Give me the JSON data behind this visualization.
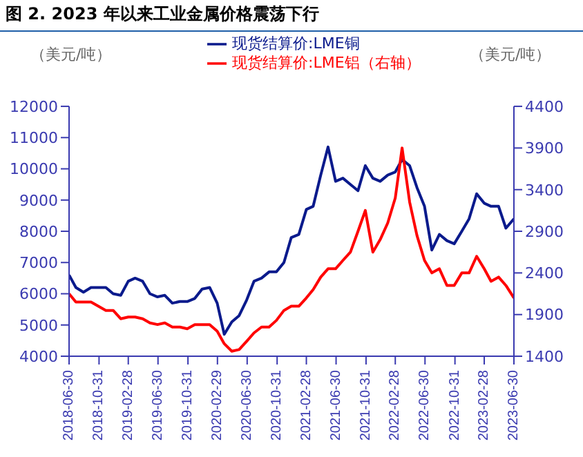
{
  "chart_data": {
    "type": "line",
    "title": "图 2. 2023 年以来工业金属价格震荡下行",
    "ylabel": "（美元/吨）",
    "y2label": "（美元/吨）",
    "x": [
      "2018-06-30",
      "2018-07-28",
      "2018-08-28",
      "2018-09-28",
      "2018-10-28",
      "2018-11-28",
      "2018-12-28",
      "2019-01-28",
      "2019-02-28",
      "2019-03-28",
      "2019-04-28",
      "2019-05-28",
      "2019-06-28",
      "2019-07-28",
      "2019-08-28",
      "2019-09-28",
      "2019-10-28",
      "2019-11-28",
      "2019-12-28",
      "2020-01-28",
      "2020-02-28",
      "2020-03-28",
      "2020-04-28",
      "2020-05-28",
      "2020-06-28",
      "2020-07-28",
      "2020-08-28",
      "2020-09-28",
      "2020-10-28",
      "2020-11-28",
      "2020-12-28",
      "2021-01-28",
      "2021-02-28",
      "2021-03-28",
      "2021-04-28",
      "2021-05-28",
      "2021-06-28",
      "2021-07-28",
      "2021-08-28",
      "2021-09-28",
      "2021-10-28",
      "2021-11-28",
      "2021-12-28",
      "2022-01-28",
      "2022-02-28",
      "2022-03-28",
      "2022-04-28",
      "2022-05-28",
      "2022-06-28",
      "2022-07-28",
      "2022-08-28",
      "2022-09-28",
      "2022-10-28",
      "2022-11-28",
      "2022-12-28",
      "2023-01-28",
      "2023-02-28",
      "2023-03-28",
      "2023-04-28",
      "2023-05-28",
      "2023-06-30"
    ],
    "series": [
      {
        "name": "现货结算价:LME铜",
        "color": "#0a1a8c",
        "values": [
          6600,
          6200,
          6050,
          6200,
          6200,
          6200,
          6000,
          5950,
          6400,
          6500,
          6400,
          6000,
          5900,
          5950,
          5700,
          5750,
          5750,
          5850,
          6150,
          6200,
          5700,
          4700,
          5100,
          5300,
          5800,
          6400,
          6500,
          6700,
          6700,
          7000,
          7800,
          7900,
          8700,
          8800,
          9800,
          10700,
          9600,
          9700,
          9500,
          9300,
          10100,
          9700,
          9600,
          9800,
          9900,
          10300,
          10100,
          9400,
          8800,
          7400,
          7900,
          7700,
          7600,
          8000,
          8400,
          9200,
          8900,
          8800,
          8800,
          8100,
          8400
        ]
      },
      {
        "name": "现货结算价:LME铝（右轴）",
        "color": "#ff0000",
        "axis": "y2",
        "values": [
          2150,
          2050,
          2050,
          2050,
          2000,
          1950,
          1950,
          1850,
          1870,
          1870,
          1850,
          1800,
          1780,
          1800,
          1750,
          1750,
          1730,
          1780,
          1780,
          1780,
          1700,
          1550,
          1460,
          1480,
          1580,
          1680,
          1750,
          1750,
          1830,
          1950,
          2000,
          2000,
          2100,
          2200,
          2350,
          2450,
          2450,
          2550,
          2650,
          2900,
          3150,
          2650,
          2800,
          3000,
          3300,
          3900,
          3250,
          2850,
          2550,
          2400,
          2450,
          2250,
          2250,
          2400,
          2400,
          2600,
          2450,
          2300,
          2350,
          2250,
          2100
        ]
      }
    ],
    "xlim": [
      "2018-06-30",
      "2023-06-30"
    ],
    "xticks": [
      "2018-06-30",
      "2018-10-31",
      "2019-02-28",
      "2019-06-30",
      "2019-10-31",
      "2020-02-29",
      "2020-06-30",
      "2020-10-31",
      "2021-02-28",
      "2021-06-30",
      "2021-10-31",
      "2022-02-28",
      "2022-06-30",
      "2022-10-31",
      "2023-02-28",
      "2023-06-30"
    ],
    "ylim": [
      4000,
      12000
    ],
    "yticks": [
      4000,
      5000,
      6000,
      7000,
      8000,
      9000,
      10000,
      11000,
      12000
    ],
    "y2lim": [
      1400,
      4400
    ],
    "y2ticks": [
      1400,
      1900,
      2400,
      2900,
      3400,
      3900,
      4400
    ],
    "legend": "top",
    "marker": "none",
    "line_style": "solid"
  }
}
